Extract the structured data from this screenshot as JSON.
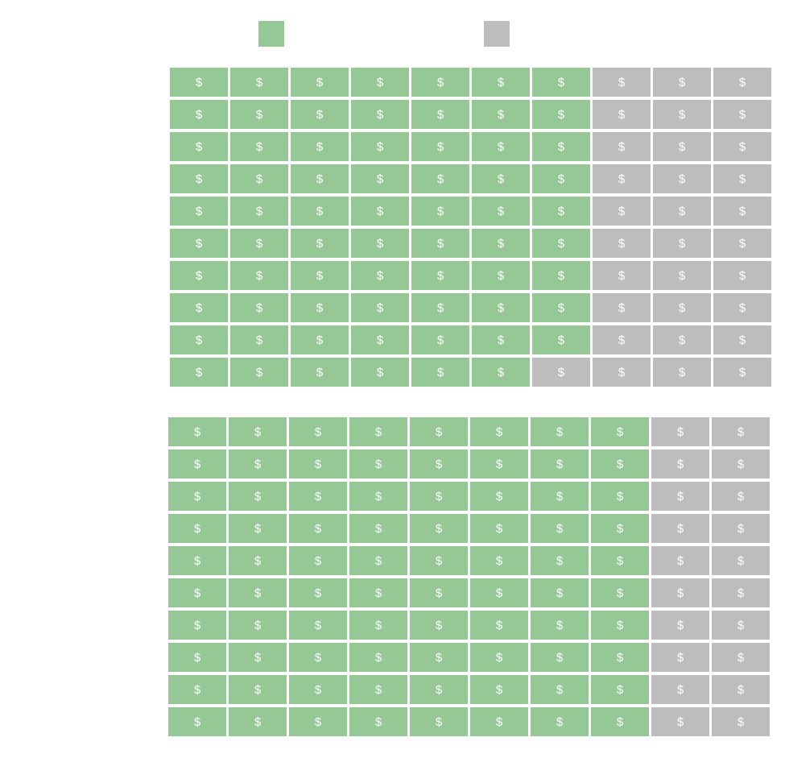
{
  "chart_data": {
    "type": "waffle",
    "title": "",
    "legend": {
      "placement": "top",
      "entries": [
        {
          "name": "",
          "color": "#96c896"
        },
        {
          "name": "",
          "color": "#bdbdbd"
        }
      ]
    },
    "grids": [
      {
        "rows": 10,
        "cols": 10,
        "filled": 69,
        "empty": 31,
        "fill_color": "#96c896",
        "empty_color": "#bdbdbd",
        "icon": "dollar-icon",
        "symbol": "$"
      },
      {
        "rows": 10,
        "cols": 10,
        "filled": 80,
        "empty": 20,
        "fill_color": "#96c896",
        "empty_color": "#bdbdbd",
        "icon": "dollar-icon",
        "symbol": "$"
      }
    ]
  }
}
